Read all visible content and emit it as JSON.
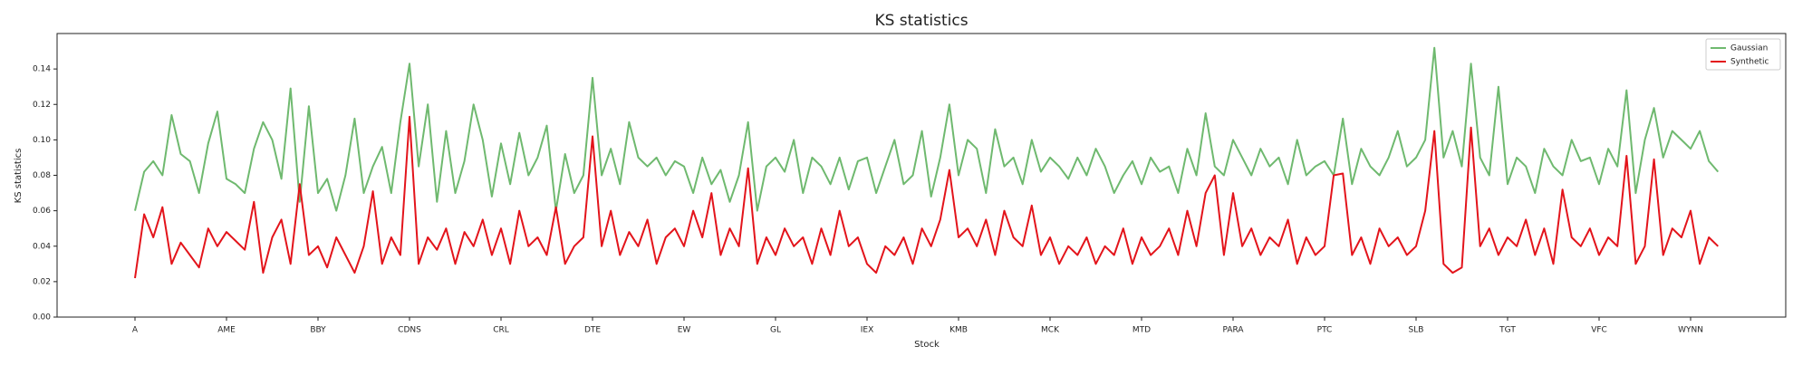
{
  "chart_data": {
    "type": "line",
    "title": "KS statistics",
    "xlabel": "Stock",
    "ylabel": "KS statistics",
    "categories": [
      "A",
      null,
      null,
      null,
      null,
      null,
      null,
      null,
      null,
      null,
      "AME",
      null,
      null,
      null,
      null,
      null,
      null,
      null,
      null,
      null,
      "BBY",
      null,
      null,
      null,
      null,
      null,
      null,
      null,
      null,
      null,
      "CDNS",
      null,
      null,
      null,
      null,
      null,
      null,
      null,
      null,
      null,
      "CRL",
      null,
      null,
      null,
      null,
      null,
      null,
      null,
      null,
      null,
      "DTE",
      null,
      null,
      null,
      null,
      null,
      null,
      null,
      null,
      null,
      "EW",
      null,
      null,
      null,
      null,
      null,
      null,
      null,
      null,
      null,
      "GL",
      null,
      null,
      null,
      null,
      null,
      null,
      null,
      null,
      null,
      "IEX",
      null,
      null,
      null,
      null,
      null,
      null,
      null,
      null,
      null,
      "KMB",
      null,
      null,
      null,
      null,
      null,
      null,
      null,
      null,
      null,
      "MCK",
      null,
      null,
      null,
      null,
      null,
      null,
      null,
      null,
      null,
      "MTD",
      null,
      null,
      null,
      null,
      null,
      null,
      null,
      null,
      null,
      "PARA",
      null,
      null,
      null,
      null,
      null,
      null,
      null,
      null,
      null,
      "PTC",
      null,
      null,
      null,
      null,
      null,
      null,
      null,
      null,
      null,
      "SLB",
      null,
      null,
      null,
      null,
      null,
      null,
      null,
      null,
      null,
      "TGT",
      null,
      null,
      null,
      null,
      null,
      null,
      null,
      null,
      null,
      "VFC",
      null,
      null,
      null,
      null,
      null,
      null,
      null,
      null,
      null,
      "WYNN",
      null,
      null,
      null
    ],
    "series": [
      {
        "name": "Gaussian",
        "color": "#6fb96f",
        "values": [
          0.06,
          0.082,
          0.088,
          0.08,
          0.114,
          0.092,
          0.088,
          0.07,
          0.098,
          0.116,
          0.078,
          0.075,
          0.07,
          0.095,
          0.11,
          0.1,
          0.078,
          0.129,
          0.065,
          0.119,
          0.07,
          0.078,
          0.06,
          0.08,
          0.112,
          0.07,
          0.085,
          0.096,
          0.07,
          0.11,
          0.143,
          0.085,
          0.12,
          0.065,
          0.105,
          0.07,
          0.088,
          0.12,
          0.1,
          0.068,
          0.098,
          0.075,
          0.104,
          0.08,
          0.09,
          0.108,
          0.06,
          0.092,
          0.07,
          0.08,
          0.135,
          0.08,
          0.095,
          0.075,
          0.11,
          0.09,
          0.085,
          0.09,
          0.08,
          0.088,
          0.085,
          0.07,
          0.09,
          0.075,
          0.083,
          0.065,
          0.08,
          0.11,
          0.06,
          0.085,
          0.09,
          0.082,
          0.1,
          0.07,
          0.09,
          0.085,
          0.075,
          0.09,
          0.072,
          0.088,
          0.09,
          0.07,
          0.085,
          0.1,
          0.075,
          0.08,
          0.105,
          0.068,
          0.09,
          0.12,
          0.08,
          0.1,
          0.095,
          0.07,
          0.106,
          0.085,
          0.09,
          0.075,
          0.1,
          0.082,
          0.09,
          0.085,
          0.078,
          0.09,
          0.08,
          0.095,
          0.085,
          0.07,
          0.08,
          0.088,
          0.075,
          0.09,
          0.082,
          0.085,
          0.07,
          0.095,
          0.08,
          0.115,
          0.085,
          0.08,
          0.1,
          0.09,
          0.08,
          0.095,
          0.085,
          0.09,
          0.075,
          0.1,
          0.08,
          0.085,
          0.088,
          0.08,
          0.112,
          0.075,
          0.095,
          0.085,
          0.08,
          0.09,
          0.105,
          0.085,
          0.09,
          0.1,
          0.152,
          0.09,
          0.105,
          0.085,
          0.143,
          0.09,
          0.08,
          0.13,
          0.075,
          0.09,
          0.085,
          0.07,
          0.095,
          0.085,
          0.08,
          0.1,
          0.088,
          0.09,
          0.075,
          0.095,
          0.085,
          0.128,
          0.07,
          0.1,
          0.118,
          0.09,
          0.105,
          0.1,
          0.095,
          0.105,
          0.088,
          0.082
        ]
      },
      {
        "name": "Synthetic",
        "color": "#e3141b",
        "values": [
          0.022,
          0.058,
          0.045,
          0.062,
          0.03,
          0.042,
          0.035,
          0.028,
          0.05,
          0.04,
          0.048,
          0.043,
          0.038,
          0.065,
          0.025,
          0.045,
          0.055,
          0.03,
          0.075,
          0.035,
          0.04,
          0.028,
          0.045,
          0.035,
          0.025,
          0.04,
          0.071,
          0.03,
          0.045,
          0.035,
          0.113,
          0.03,
          0.045,
          0.038,
          0.05,
          0.03,
          0.048,
          0.04,
          0.055,
          0.035,
          0.05,
          0.03,
          0.06,
          0.04,
          0.045,
          0.035,
          0.062,
          0.03,
          0.04,
          0.045,
          0.102,
          0.04,
          0.06,
          0.035,
          0.048,
          0.04,
          0.055,
          0.03,
          0.045,
          0.05,
          0.04,
          0.06,
          0.045,
          0.07,
          0.035,
          0.05,
          0.04,
          0.084,
          0.03,
          0.045,
          0.035,
          0.05,
          0.04,
          0.045,
          0.03,
          0.05,
          0.035,
          0.06,
          0.04,
          0.045,
          0.03,
          0.025,
          0.04,
          0.035,
          0.045,
          0.03,
          0.05,
          0.04,
          0.055,
          0.083,
          0.045,
          0.05,
          0.04,
          0.055,
          0.035,
          0.06,
          0.045,
          0.04,
          0.063,
          0.035,
          0.045,
          0.03,
          0.04,
          0.035,
          0.045,
          0.03,
          0.04,
          0.035,
          0.05,
          0.03,
          0.045,
          0.035,
          0.04,
          0.05,
          0.035,
          0.06,
          0.04,
          0.07,
          0.08,
          0.035,
          0.07,
          0.04,
          0.05,
          0.035,
          0.045,
          0.04,
          0.055,
          0.03,
          0.045,
          0.035,
          0.04,
          0.08,
          0.081,
          0.035,
          0.045,
          0.03,
          0.05,
          0.04,
          0.045,
          0.035,
          0.04,
          0.06,
          0.105,
          0.03,
          0.025,
          0.028,
          0.107,
          0.04,
          0.05,
          0.035,
          0.045,
          0.04,
          0.055,
          0.035,
          0.05,
          0.03,
          0.072,
          0.045,
          0.04,
          0.05,
          0.035,
          0.045,
          0.04,
          0.091,
          0.03,
          0.04,
          0.089,
          0.035,
          0.05,
          0.045,
          0.06,
          0.03,
          0.045,
          0.04
        ]
      }
    ],
    "ylim": [
      0,
      0.16
    ],
    "yticks": [
      {
        "value": 0,
        "label": "0.00"
      },
      {
        "value": 0.02,
        "label": "0.02"
      },
      {
        "value": 0.04,
        "label": "0.04"
      },
      {
        "value": 0.06,
        "label": "0.06"
      },
      {
        "value": 0.08,
        "label": "0.08"
      },
      {
        "value": 0.1,
        "label": "0.10"
      },
      {
        "value": 0.12,
        "label": "0.12"
      },
      {
        "value": 0.14,
        "label": "0.14"
      }
    ],
    "legend": "upper right"
  }
}
